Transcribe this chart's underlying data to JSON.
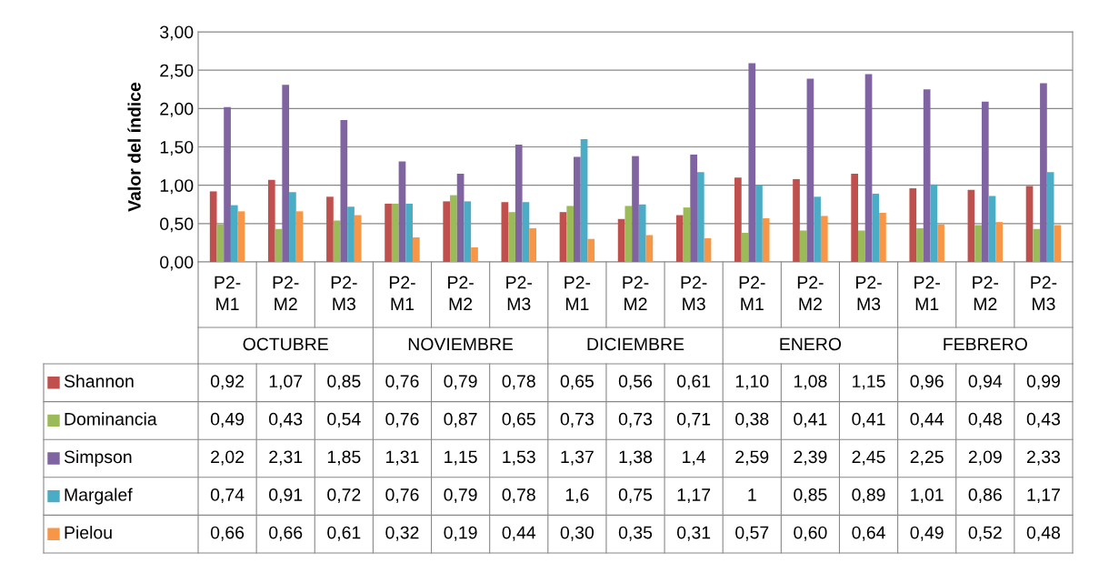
{
  "chart_data": {
    "type": "bar",
    "ylabel": "Valor del índice",
    "categories": [
      "P2-\nM1",
      "P2-\nM2",
      "P2-\nM3",
      "P2-\nM1",
      "P2-\nM2",
      "P2-\nM3",
      "P2-\nM1",
      "P2-\nM2",
      "P2-\nM3",
      "P2-\nM1",
      "P2-\nM2",
      "P2-\nM3",
      "P2-\nM1",
      "P2-\nM2",
      "P2-\nM3"
    ],
    "annotations": [
      "OCTUBRE",
      "NOVIEMBRE",
      "DICIEMBRE",
      "ENERO",
      "FEBRERO"
    ],
    "ylim": [
      0,
      3
    ],
    "yticks": [
      {
        "value": 0,
        "label": "0,00"
      },
      {
        "value": 0.5,
        "label": "0,50"
      },
      {
        "value": 1,
        "label": "1,00"
      },
      {
        "value": 1.5,
        "label": "1,50"
      },
      {
        "value": 2,
        "label": "2,00"
      },
      {
        "value": 2.5,
        "label": "2,50"
      },
      {
        "value": 3,
        "label": "3,00"
      }
    ],
    "grid": "y",
    "legend": "bottom",
    "series": [
      {
        "name": "Shannon",
        "color": "#c0504d",
        "values": [
          0.92,
          1.07,
          0.85,
          0.76,
          0.79,
          0.78,
          0.65,
          0.56,
          0.61,
          1.1,
          1.08,
          1.15,
          0.96,
          0.94,
          0.99
        ],
        "value_labels": [
          "0,92",
          "1,07",
          "0,85",
          "0,76",
          "0,79",
          "0,78",
          "0,65",
          "0,56",
          "0,61",
          "1,10",
          "1,08",
          "1,15",
          "0,96",
          "0,94",
          "0,99"
        ]
      },
      {
        "name": "Dominancia",
        "color": "#9bbb59",
        "values": [
          0.49,
          0.43,
          0.54,
          0.76,
          0.87,
          0.65,
          0.73,
          0.73,
          0.71,
          0.38,
          0.41,
          0.41,
          0.44,
          0.48,
          0.43
        ],
        "value_labels": [
          "0,49",
          "0,43",
          "0,54",
          "0,76",
          "0,87",
          "0,65",
          "0,73",
          "0,73",
          "0,71",
          "0,38",
          "0,41",
          "0,41",
          "0,44",
          "0,48",
          "0,43"
        ]
      },
      {
        "name": "Simpson",
        "color": "#8064a2",
        "values": [
          2.02,
          2.31,
          1.85,
          1.31,
          1.15,
          1.53,
          1.37,
          1.38,
          1.4,
          2.59,
          2.39,
          2.45,
          2.25,
          2.09,
          2.33
        ],
        "value_labels": [
          "2,02",
          "2,31",
          "1,85",
          "1,31",
          "1,15",
          "1,53",
          "1,37",
          "1,38",
          "1,4",
          "2,59",
          "2,39",
          "2,45",
          "2,25",
          "2,09",
          "2,33"
        ]
      },
      {
        "name": "Margalef",
        "color": "#4bacc6",
        "values": [
          0.74,
          0.91,
          0.72,
          0.76,
          0.79,
          0.78,
          1.6,
          0.75,
          1.17,
          1,
          0.85,
          0.89,
          1.01,
          0.86,
          1.17
        ],
        "value_labels": [
          "0,74",
          "0,91",
          "0,72",
          "0,76",
          "0,79",
          "0,78",
          "1,6",
          "0,75",
          "1,17",
          "1",
          "0,85",
          "0,89",
          "1,01",
          "0,86",
          "1,17"
        ]
      },
      {
        "name": "Pielou",
        "color": "#f79646",
        "values": [
          0.66,
          0.66,
          0.61,
          0.32,
          0.19,
          0.44,
          0.3,
          0.35,
          0.31,
          0.57,
          0.6,
          0.64,
          0.49,
          0.52,
          0.48
        ],
        "value_labels": [
          "0,66",
          "0,66",
          "0,61",
          "0,32",
          "0,19",
          "0,44",
          "0,30",
          "0,35",
          "0,31",
          "0,57",
          "0,60",
          "0,64",
          "0,49",
          "0,52",
          "0,48"
        ]
      }
    ]
  }
}
